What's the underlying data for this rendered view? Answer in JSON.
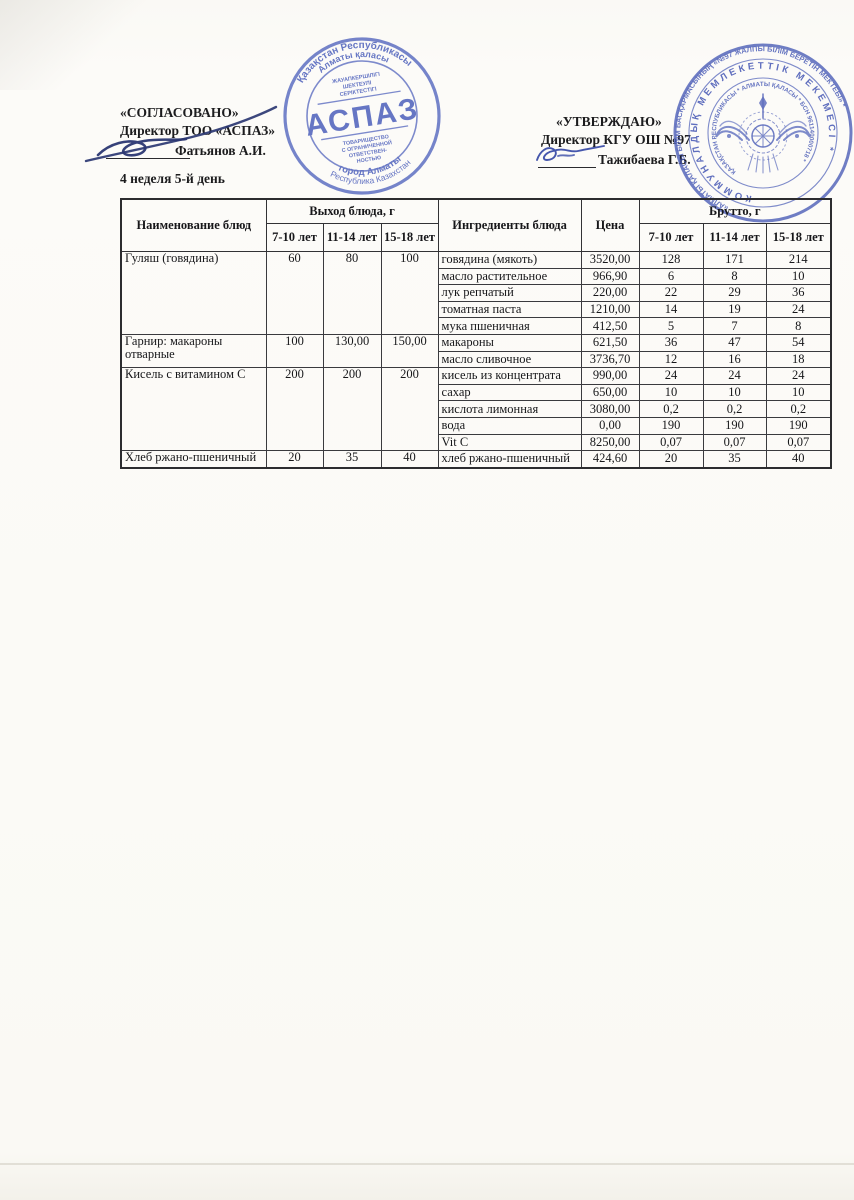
{
  "left_block": {
    "title": "«СОГЛАСОВАНО»",
    "role": "Директор ТОО «АСПАЗ»",
    "name": "Фатьянов А.И.",
    "week": "4 неделя 5-й день"
  },
  "right_block": {
    "title": "«УТВЕРЖДАЮ»",
    "role": "Директор КГУ ОШ №97",
    "name": "Тажибаева Г.Б."
  },
  "colors": {
    "stamp_blue": "#4c5fbb",
    "ink_blue": "#2b3772"
  },
  "stamps": {
    "aspaz": {
      "arc_top_outer": "Қазақстан Республикасы",
      "arc_top_inner": "Алматы қаласы",
      "inner_line1": "ЖАУАПКЕРШІЛІГІ",
      "inner_line2": "ШЕКТЕУЛІ",
      "inner_line3": "СЕРІКТЕСТІГІ",
      "center": "АСПАЗ",
      "inner_line4": "ТОВАРИЩЕСТВО",
      "inner_line5": "С ОГРАНИЧЕННОЙ",
      "inner_line6": "ОТВЕТСТВЕН-",
      "inner_line7": "НОСТЬЮ",
      "arc_bottom_inner": "город Алматы",
      "arc_bottom_outer": "Республика Казахстан"
    },
    "school": {
      "arc_outer": "«АЛМАТЫ ҚАЛАСЫ БІЛІМ БАСҚАРМАСЫНЫҢ «№97 ЖАЛПЫ БІЛІМ БЕРЕТІН МЕКТЕБІ» *",
      "arc_middle": "КОММУНАЛДЫҚ МЕМЛЕКЕТТІК МЕКЕМЕСІ *",
      "arc_inner": "ҚАЗАҚСТАН РЕСПУБЛИКАСЫ * АЛМАТЫ ҚАЛАСЫ * БСН 961140000718 *"
    }
  },
  "table": {
    "col_name": "Наименование блюд",
    "col_out_group": "Выход блюда, г",
    "col_ingredients": "Ингредиенты блюда",
    "col_price": "Цена",
    "col_brutto_group": "Брутто, г",
    "age_cols": [
      "7-10 лет",
      "11-14 лет",
      "15-18 лет"
    ],
    "groups": [
      {
        "dish": "Гуляш (говядина)",
        "out": [
          "60",
          "80",
          "100"
        ],
        "ingredients": [
          {
            "name": "говядина (мякоть)",
            "price": "3520,00",
            "brutto": [
              "128",
              "171",
              "214"
            ]
          },
          {
            "name": "масло растительное",
            "price": "966,90",
            "brutto": [
              "6",
              "8",
              "10"
            ]
          },
          {
            "name": "лук репчатый",
            "price": "220,00",
            "brutto": [
              "22",
              "29",
              "36"
            ]
          },
          {
            "name": "томатная паста",
            "price": "1210,00",
            "brutto": [
              "14",
              "19",
              "24"
            ]
          },
          {
            "name": "мука пшеничная",
            "price": "412,50",
            "brutto": [
              "5",
              "7",
              "8"
            ]
          }
        ]
      },
      {
        "dish": "Гарнир: макароны отварные",
        "out": [
          "100",
          "130,00",
          "150,00"
        ],
        "ingredients": [
          {
            "name": "макароны",
            "price": "621,50",
            "brutto": [
              "36",
              "47",
              "54"
            ]
          },
          {
            "name": "масло сливочное",
            "price": "3736,70",
            "brutto": [
              "12",
              "16",
              "18"
            ]
          }
        ]
      },
      {
        "dish": "Кисель с витамином С",
        "out": [
          "200",
          "200",
          "200"
        ],
        "ingredients": [
          {
            "name": "кисель из концентрата",
            "price": "990,00",
            "brutto": [
              "24",
              "24",
              "24"
            ]
          },
          {
            "name": "сахар",
            "price": "650,00",
            "brutto": [
              "10",
              "10",
              "10"
            ]
          },
          {
            "name": "кислота лимонная",
            "price": "3080,00",
            "brutto": [
              "0,2",
              "0,2",
              "0,2"
            ]
          },
          {
            "name": "вода",
            "price": "0,00",
            "brutto": [
              "190",
              "190",
              "190"
            ]
          },
          {
            "name": "Vit C",
            "price": "8250,00",
            "brutto": [
              "0,07",
              "0,07",
              "0,07"
            ]
          }
        ]
      },
      {
        "dish": "Хлеб ржано-пшеничный",
        "out": [
          "20",
          "35",
          "40"
        ],
        "ingredients": [
          {
            "name": "хлеб ржано-пшеничный",
            "price": "424,60",
            "brutto": [
              "20",
              "35",
              "40"
            ]
          }
        ]
      }
    ]
  }
}
